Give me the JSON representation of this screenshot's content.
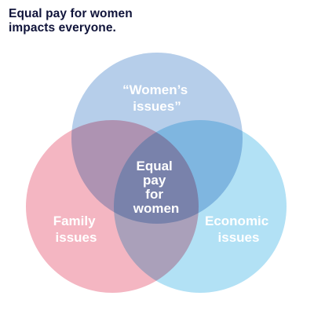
{
  "headline": {
    "line1": "Equal pay for women",
    "line2": "impacts everyone."
  },
  "venn": {
    "top": {
      "line1": "“Women’s",
      "line2": "issues”",
      "color": "#a9c5e6"
    },
    "left": {
      "line1": "Family",
      "line2": "issues",
      "color": "#f2a9b8"
    },
    "right": {
      "line1": "Economic",
      "line2": "issues",
      "color": "#aee0f5"
    },
    "center": {
      "line1": "Equal",
      "line2": "pay",
      "line3": "for",
      "line4": "women"
    }
  }
}
